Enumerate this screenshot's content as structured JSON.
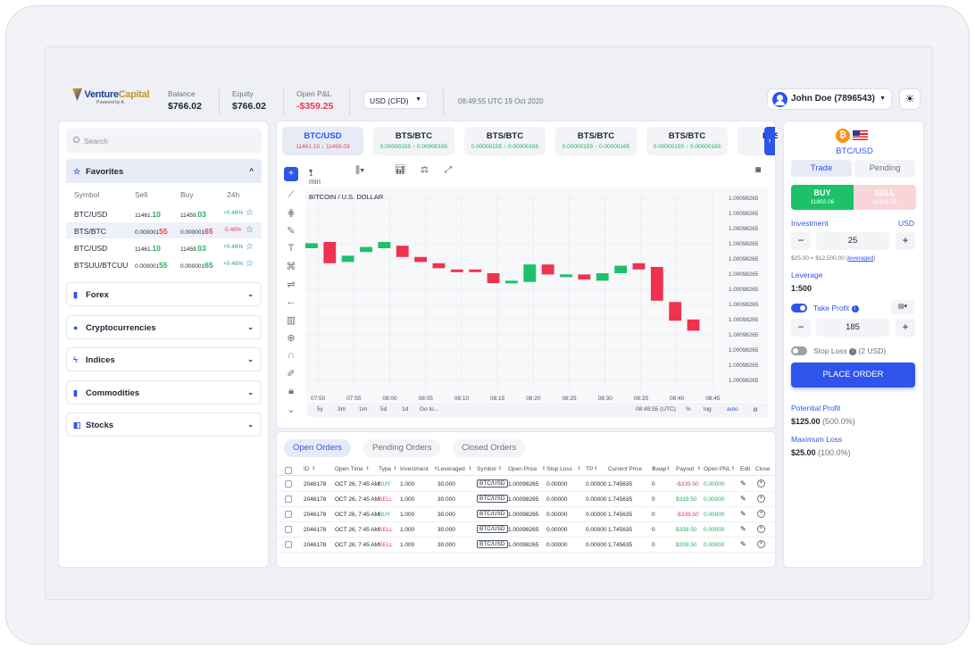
{
  "brand": {
    "name_a": "Venture",
    "name_b": "Capital",
    "tagline": "Powered by A"
  },
  "header": {
    "balance_label": "Balance",
    "balance": "$766.02",
    "equity_label": "Equity",
    "equity": "$766.02",
    "pnl_label": "Open P&L",
    "pnl": "-$359.25",
    "account_type": "USD (CFD)",
    "clock": "08:49:55 UTC 19 Oct 2020",
    "user": "John Doe (7896543)"
  },
  "sidebar": {
    "search_placeholder": "Search",
    "favorites": "Favorites",
    "columns": {
      "symbol": "Symbol",
      "sell": "Sell",
      "buy": "Buy",
      "change": "24h"
    },
    "rows": [
      {
        "symbol": "BTC/USD",
        "sell_a": "11461.",
        "sell_b": "10",
        "buy_a": "11459.",
        "buy_b": "03",
        "change": "+0.48%"
      },
      {
        "symbol": "BTS/BTC",
        "sell_a": "0.000001",
        "sell_b": "55",
        "buy_a": "0.000001",
        "buy_b": "65",
        "change": "-0.48%"
      },
      {
        "symbol": "BTC/USD",
        "sell_a": "11461.",
        "sell_b": "10",
        "buy_a": "11459.",
        "buy_b": "03",
        "change": "+0.48%"
      },
      {
        "symbol": "BTSUU/BTCUU",
        "sell_a": "0.000001",
        "sell_b": "55",
        "buy_a": "0.000001",
        "buy_b": "65",
        "change": "+0.48%"
      }
    ],
    "categories": [
      "Forex",
      "Cryptocurrencies",
      "Indices",
      "Commodities",
      "Stocks"
    ]
  },
  "tickers": [
    {
      "pair": "BTC/USD",
      "sell": "11461.10",
      "buy": "11459.03"
    },
    {
      "pair": "BTS/BTC",
      "sell": "0.00000155",
      "buy": "0.00000165"
    },
    {
      "pair": "BTS/BTC",
      "sell": "0.00000155",
      "buy": "0.00000165"
    },
    {
      "pair": "BTS/BTC",
      "sell": "0.00000155",
      "buy": "0.00000165"
    },
    {
      "pair": "BTS/BTC",
      "sell": "0.00000155",
      "buy": "0.00000165"
    },
    {
      "pair": "BTS",
      "sell": "",
      "buy": ""
    }
  ],
  "chart_toolbar": {
    "interval": "1 min"
  },
  "chart_bottom": {
    "ranges": [
      "5y",
      "3m",
      "1m",
      "5d",
      "1d",
      "Go to..."
    ],
    "time": "08:49:55 (UTC)",
    "pct": "%",
    "log": "log",
    "auto": "auto"
  },
  "chart_data": {
    "type": "candlestick",
    "title": "BITCOIN / U.S. DOLLAR",
    "x_ticks": [
      "07:50",
      "07:55",
      "08:00",
      "08:05",
      "08:10",
      "08:15",
      "08:20",
      "08:25",
      "08:30",
      "08:35",
      "08:40",
      "08:45"
    ],
    "y_tick_label": "1.00098265",
    "y_tick_count": 13,
    "candles": [
      {
        "open": 0.4,
        "close": 0.36,
        "dir": "up"
      },
      {
        "open": 0.35,
        "close": 0.52,
        "dir": "down"
      },
      {
        "open": 0.51,
        "close": 0.46,
        "dir": "up"
      },
      {
        "open": 0.43,
        "close": 0.39,
        "dir": "up"
      },
      {
        "open": 0.4,
        "close": 0.35,
        "dir": "up"
      },
      {
        "open": 0.38,
        "close": 0.47,
        "dir": "down"
      },
      {
        "open": 0.47,
        "close": 0.51,
        "dir": "down"
      },
      {
        "open": 0.52,
        "close": 0.56,
        "dir": "down"
      },
      {
        "open": 0.57,
        "close": 0.58,
        "dir": "down"
      },
      {
        "open": 0.57,
        "close": 0.59,
        "dir": "down"
      },
      {
        "open": 0.6,
        "close": 0.68,
        "dir": "down"
      },
      {
        "open": 0.68,
        "close": 0.66,
        "dir": "up"
      },
      {
        "open": 0.67,
        "close": 0.53,
        "dir": "up"
      },
      {
        "open": 0.53,
        "close": 0.61,
        "dir": "down"
      },
      {
        "open": 0.62,
        "close": 0.61,
        "dir": "up"
      },
      {
        "open": 0.61,
        "close": 0.65,
        "dir": "down"
      },
      {
        "open": 0.66,
        "close": 0.6,
        "dir": "up"
      },
      {
        "open": 0.6,
        "close": 0.54,
        "dir": "up"
      },
      {
        "open": 0.52,
        "close": 0.57,
        "dir": "down"
      },
      {
        "open": 0.55,
        "close": 0.82,
        "dir": "down"
      },
      {
        "open": 0.83,
        "close": 0.98,
        "dir": "down"
      },
      {
        "open": 0.97,
        "close": 1.06,
        "dir": "down"
      }
    ]
  },
  "orders": {
    "tabs": [
      "Open Orders",
      "Pending Orders",
      "Closed Orders"
    ],
    "columns": [
      "ID",
      "Open Time",
      "Type",
      "Investment",
      "Leveraged",
      "Symbol",
      "Open Price",
      "Stop Loss",
      "TP",
      "Current Price",
      "Swap",
      "Payout",
      "Open PNL",
      "Edit",
      "Close"
    ],
    "rows": [
      {
        "id": "2046178",
        "time": "OCT 26, 7:45 AM",
        "type": "BUY",
        "inv": "1.000",
        "lev": "30.000",
        "sym": "BTC/USD",
        "open": "1.00098265",
        "sl": "0.00000",
        "tp": "0.00000",
        "cur": "1.745635",
        "swap": "0",
        "payout": "-$339.50",
        "pnl": "0.00000"
      },
      {
        "id": "2046178",
        "time": "OCT 26, 7:45 AM",
        "type": "SELL",
        "inv": "1.000",
        "lev": "30.000",
        "sym": "BTC/USD",
        "open": "1.00098265",
        "sl": "0.00000",
        "tp": "0.00000",
        "cur": "1.745635",
        "swap": "0",
        "payout": "$339.50",
        "pnl": "0.00000"
      },
      {
        "id": "2046178",
        "time": "OCT 26, 7:45 AM",
        "type": "BUY",
        "inv": "1.000",
        "lev": "30.000",
        "sym": "BTC/USD",
        "open": "1.00098265",
        "sl": "0.00000",
        "tp": "0.00000",
        "cur": "1.745635",
        "swap": "0",
        "payout": "-$339.50",
        "pnl": "0.00000"
      },
      {
        "id": "2046178",
        "time": "OCT 26, 7:45 AM",
        "type": "SELL",
        "inv": "1.000",
        "lev": "30.000",
        "sym": "BTC/USD",
        "open": "1.00098265",
        "sl": "0.00000",
        "tp": "0.00000",
        "cur": "1.745635",
        "swap": "0",
        "payout": "$339.50",
        "pnl": "0.00000"
      },
      {
        "id": "2046178",
        "time": "OCT 26, 7:45 AM",
        "type": "SELL",
        "inv": "1.000",
        "lev": "30.000",
        "sym": "BTC/USD",
        "open": "1.00098265",
        "sl": "0.00000",
        "tp": "0.00000",
        "cur": "1.745635",
        "swap": "0",
        "payout": "$339.50",
        "pnl": "0.00000"
      }
    ]
  },
  "trade": {
    "pair": "BTC/USD",
    "tab_trade": "Trade",
    "tab_pending": "Pending",
    "buy_label": "BUY",
    "buy_price": "11802.06",
    "sell_label": "SELL",
    "sell_price": "11801.52",
    "investment_label": "Investment",
    "currency": "USD",
    "investment": "25",
    "leveraged_note": "$25.00 = $12,500.00 (",
    "leveraged_link": "leveraged",
    "leveraged_close": ")",
    "leverage_label": "Leverage",
    "leverage": "1:500",
    "take_profit_label": "Take Profit",
    "take_profit": "185",
    "stop_loss_label": "Stop Loss",
    "stop_loss_note": "(2 USD)",
    "place_order": "PLACE ORDER",
    "potential_label": "Potential Profit",
    "potential": "$125.00",
    "potential_pct": "(500.0%)",
    "max_loss_label": "Maximum Loss",
    "max_loss": "$25.00",
    "max_loss_pct": "(100.0%)"
  },
  "colors": {
    "accent": "#2f54eb",
    "up": "#1cc16a",
    "down": "#f0324e"
  }
}
